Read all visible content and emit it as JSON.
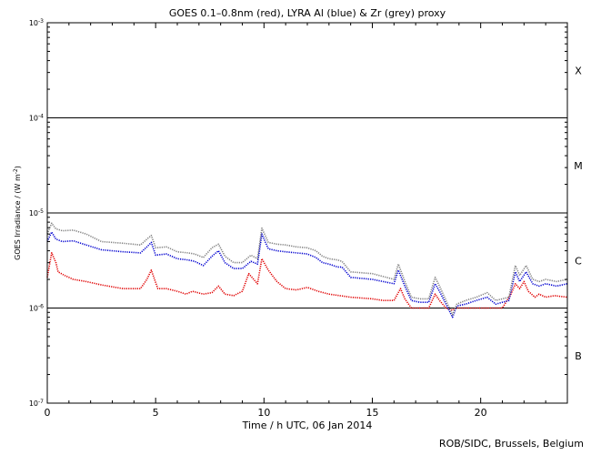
{
  "chart_data": {
    "type": "line",
    "title": "GOES 0.1–0.8nm (red), LYRA Al (blue) & Zr (grey) proxy",
    "xlabel": "Time / h UTC, 06 Jan 2014",
    "ylabel": "GOES Irradiance / (W m",
    "ylabel_sup": "-2",
    "ylabel_close": ")",
    "x_range": [
      0,
      24
    ],
    "x_ticks": [
      0,
      5,
      10,
      15,
      20
    ],
    "y_scale": "log",
    "y_range": [
      1e-07,
      0.001
    ],
    "y_tick_labels": [
      {
        "base": "10",
        "exp": "-3"
      },
      {
        "base": "10",
        "exp": "-4"
      },
      {
        "base": "10",
        "exp": "-5"
      },
      {
        "base": "10",
        "exp": "-6"
      },
      {
        "base": "10",
        "exp": "-7"
      }
    ],
    "class_labels": [
      "X",
      "M",
      "C",
      "B"
    ],
    "reference_lines": [
      0.0001,
      1e-05,
      1e-06
    ],
    "series": [
      {
        "key": "goes",
        "color": "#e00000",
        "x": [
          0.0,
          0.2,
          0.4,
          0.5,
          0.8,
          1.2,
          1.8,
          2.5,
          3.5,
          4.3,
          4.6,
          4.8,
          5.1,
          5.5,
          6.0,
          6.4,
          6.7,
          7.2,
          7.6,
          7.9,
          8.2,
          8.6,
          9.0,
          9.3,
          9.7,
          9.9,
          10.2,
          10.6,
          11.0,
          11.5,
          12.0,
          12.5,
          13.0,
          13.5,
          14.0,
          15.0,
          15.5,
          16.0,
          16.3,
          16.5,
          16.8,
          17.2,
          17.6,
          17.9,
          18.1,
          18.4,
          18.7,
          18.9,
          19.5,
          20.0,
          20.5,
          21.0,
          21.4,
          21.6,
          21.8,
          22.0,
          22.2,
          22.5,
          22.7,
          23.0,
          23.4,
          24.0
        ],
        "values": [
          2.1e-06,
          3.8e-06,
          3e-06,
          2.4e-06,
          2.2e-06,
          2e-06,
          1.9e-06,
          1.75e-06,
          1.6e-06,
          1.6e-06,
          2e-06,
          2.5e-06,
          1.6e-06,
          1.6e-06,
          1.5e-06,
          1.4e-06,
          1.5e-06,
          1.4e-06,
          1.45e-06,
          1.7e-06,
          1.4e-06,
          1.35e-06,
          1.5e-06,
          2.3e-06,
          1.8e-06,
          3.3e-06,
          2.5e-06,
          1.9e-06,
          1.6e-06,
          1.55e-06,
          1.65e-06,
          1.5e-06,
          1.4e-06,
          1.35e-06,
          1.3e-06,
          1.25e-06,
          1.2e-06,
          1.2e-06,
          1.6e-06,
          1.25e-06,
          1e-06,
          1e-06,
          1e-06,
          1.4e-06,
          1.2e-06,
          1e-06,
          9.5e-07,
          1e-06,
          1e-06,
          1e-06,
          1e-06,
          1e-06,
          1.4e-06,
          1.8e-06,
          1.6e-06,
          1.9e-06,
          1.5e-06,
          1.3e-06,
          1.4e-06,
          1.3e-06,
          1.35e-06,
          1.3e-06
        ]
      },
      {
        "key": "lyra-al",
        "color": "#0000d0",
        "x": [
          0.0,
          0.2,
          0.4,
          0.7,
          1.2,
          1.8,
          2.5,
          3.5,
          4.3,
          4.6,
          4.8,
          5.0,
          5.5,
          6.0,
          6.5,
          6.8,
          7.2,
          7.6,
          7.9,
          8.2,
          8.6,
          9.0,
          9.4,
          9.7,
          9.9,
          10.2,
          10.6,
          11.0,
          11.5,
          12.0,
          12.4,
          12.7,
          13.0,
          13.4,
          13.6,
          14.0,
          15.0,
          16.0,
          16.2,
          16.5,
          16.8,
          17.2,
          17.6,
          17.9,
          18.1,
          18.4,
          18.7,
          18.9,
          19.3,
          19.8,
          20.3,
          20.7,
          21.0,
          21.3,
          21.6,
          21.8,
          22.1,
          22.4,
          22.7,
          23.0,
          23.5,
          24.0
        ],
        "values": [
          5e-06,
          6.3e-06,
          5.3e-06,
          5e-06,
          5.1e-06,
          4.6e-06,
          4.1e-06,
          3.9e-06,
          3.8e-06,
          4.4e-06,
          4.9e-06,
          3.6e-06,
          3.7e-06,
          3.3e-06,
          3.2e-06,
          3.1e-06,
          2.8e-06,
          3.5e-06,
          4e-06,
          3e-06,
          2.6e-06,
          2.6e-06,
          3.1e-06,
          2.9e-06,
          6e-06,
          4.2e-06,
          4e-06,
          3.9e-06,
          3.8e-06,
          3.7e-06,
          3.4e-06,
          3e-06,
          2.9e-06,
          2.7e-06,
          2.7e-06,
          2.1e-06,
          2e-06,
          1.8e-06,
          2.5e-06,
          1.7e-06,
          1.2e-06,
          1.15e-06,
          1.15e-06,
          1.8e-06,
          1.5e-06,
          1.1e-06,
          8e-07,
          1.05e-06,
          1.1e-06,
          1.2e-06,
          1.3e-06,
          1.1e-06,
          1.15e-06,
          1.2e-06,
          2.4e-06,
          1.9e-06,
          2.4e-06,
          1.8e-06,
          1.7e-06,
          1.8e-06,
          1.7e-06,
          1.8e-06
        ]
      },
      {
        "key": "lyra-zr",
        "color": "#808080",
        "x": [
          0.0,
          0.2,
          0.4,
          0.7,
          1.2,
          1.8,
          2.5,
          3.5,
          4.3,
          4.6,
          4.8,
          5.0,
          5.5,
          6.0,
          6.5,
          6.8,
          7.2,
          7.6,
          7.9,
          8.2,
          8.6,
          9.0,
          9.4,
          9.7,
          9.9,
          10.2,
          10.6,
          11.0,
          11.5,
          12.0,
          12.4,
          12.7,
          13.0,
          13.4,
          13.6,
          14.0,
          15.0,
          16.0,
          16.2,
          16.5,
          16.8,
          17.2,
          17.6,
          17.9,
          18.1,
          18.4,
          18.7,
          18.9,
          19.3,
          19.8,
          20.3,
          20.7,
          21.0,
          21.3,
          21.6,
          21.8,
          22.1,
          22.4,
          22.7,
          23.0,
          23.5,
          24.0
        ],
        "values": [
          6e-06,
          7.8e-06,
          6.8e-06,
          6.5e-06,
          6.6e-06,
          6e-06,
          5e-06,
          4.8e-06,
          4.6e-06,
          5.3e-06,
          5.8e-06,
          4.3e-06,
          4.4e-06,
          3.9e-06,
          3.8e-06,
          3.7e-06,
          3.4e-06,
          4.3e-06,
          4.7e-06,
          3.5e-06,
          3e-06,
          3e-06,
          3.6e-06,
          3.3e-06,
          6.9e-06,
          4.9e-06,
          4.7e-06,
          4.6e-06,
          4.4e-06,
          4.3e-06,
          4e-06,
          3.5e-06,
          3.3e-06,
          3.2e-06,
          3.1e-06,
          2.4e-06,
          2.3e-06,
          2e-06,
          2.9e-06,
          1.9e-06,
          1.3e-06,
          1.25e-06,
          1.25e-06,
          2.1e-06,
          1.7e-06,
          1.2e-06,
          8.5e-07,
          1.1e-06,
          1.2e-06,
          1.3e-06,
          1.45e-06,
          1.2e-06,
          1.25e-06,
          1.3e-06,
          2.8e-06,
          2.2e-06,
          2.8e-06,
          2e-06,
          1.9e-06,
          2e-06,
          1.9e-06,
          2e-06
        ]
      }
    ]
  },
  "credit": "ROB/SIDC, Brussels, Belgium"
}
